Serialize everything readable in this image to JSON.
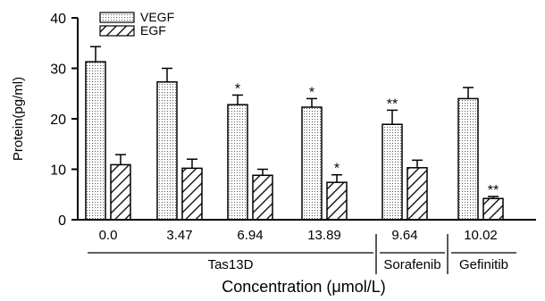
{
  "chart_data": {
    "type": "bar",
    "title": "",
    "ylabel": "Protein(pg/ml)",
    "xlabel": "Concentration (μmol/L)",
    "ylim": [
      0,
      40
    ],
    "yticks": [
      "0",
      "10",
      "20",
      "30",
      "40"
    ],
    "categories": [
      "0.0",
      "3.47",
      "6.94",
      "13.89",
      "9.64",
      "10.02"
    ],
    "groups": [
      {
        "label": "Tas13D",
        "span": [
          0,
          3
        ]
      },
      {
        "label": "Sorafenib",
        "span": [
          4,
          4
        ]
      },
      {
        "label": "Gefinitib",
        "span": [
          5,
          5
        ]
      }
    ],
    "series": [
      {
        "name": "VEGF",
        "pattern": "dotted",
        "values": [
          31.3,
          27.3,
          22.8,
          22.3,
          18.9,
          24.0
        ],
        "errors": [
          3.0,
          2.7,
          1.9,
          1.7,
          2.8,
          2.2
        ],
        "significance": [
          "",
          "",
          "*",
          "*",
          "**",
          ""
        ]
      },
      {
        "name": "EGF",
        "pattern": "hatched",
        "values": [
          10.9,
          10.2,
          8.8,
          7.4,
          10.3,
          4.2
        ],
        "errors": [
          2.0,
          1.8,
          1.2,
          1.5,
          1.5,
          0.4
        ],
        "significance": [
          "",
          "",
          "",
          "*",
          "",
          "**"
        ]
      }
    ],
    "legend": {
      "position": "top-left"
    },
    "grid": false,
    "colors": {
      "axis": "#000000",
      "bar_fill": "#ffffff",
      "pattern": "#000000"
    }
  }
}
